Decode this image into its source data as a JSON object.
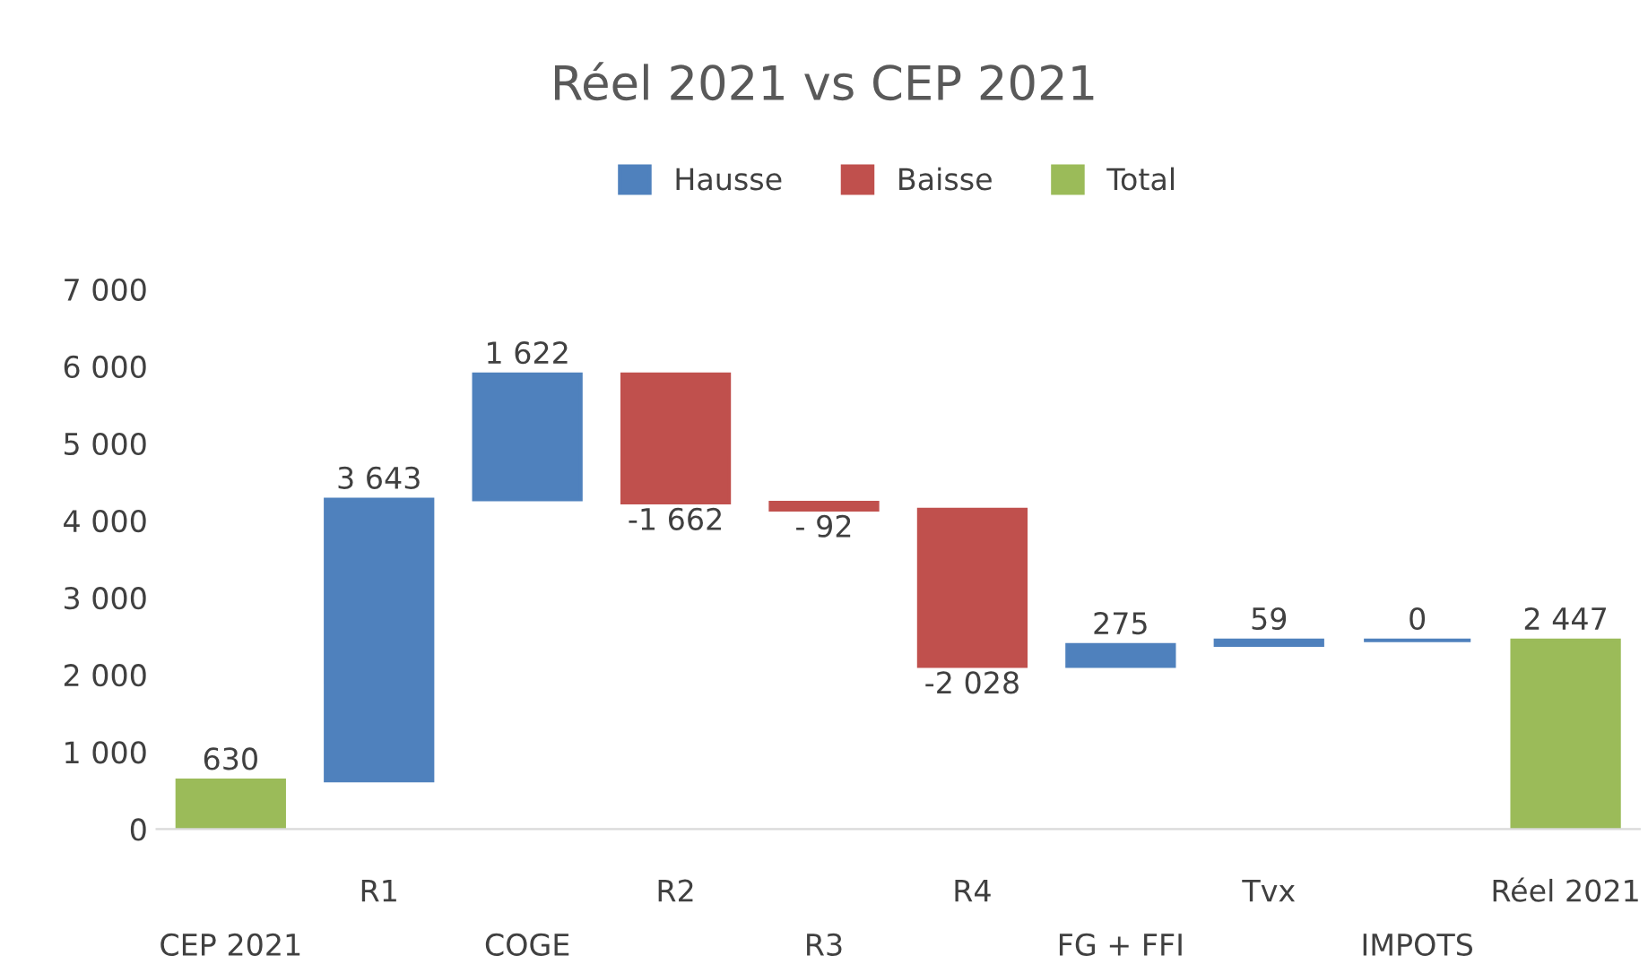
{
  "chart_data": {
    "type": "bar",
    "title": "Réel 2021 vs CEP 2021",
    "categories": [
      "CEP 2021",
      "R1",
      "COGE",
      "R2",
      "R3",
      "R4",
      "FG + FFI",
      "Tvx",
      "IMPOTS",
      "Réel 2021"
    ],
    "series": [
      {
        "name": "Hausse",
        "color": "#4f81bd",
        "base": [
          null,
          630,
          4273,
          null,
          null,
          null,
          2113,
          2388,
          2447,
          null
        ],
        "values": [
          null,
          3643,
          1622,
          null,
          null,
          null,
          275,
          59,
          0,
          null
        ],
        "value_labels": [
          null,
          "3 643",
          "1 622",
          null,
          null,
          null,
          "275",
          "59",
          "0",
          null
        ]
      },
      {
        "name": "Baisse",
        "color": "#c0504d",
        "base": [
          null,
          null,
          null,
          5895,
          4233,
          4141,
          null,
          null,
          null,
          null
        ],
        "values": [
          null,
          null,
          null,
          -1662,
          -92,
          -2028,
          null,
          null,
          null,
          null
        ],
        "value_labels": [
          null,
          null,
          null,
          "-1 662",
          "- 92",
          "-2 028",
          null,
          null,
          null,
          null
        ]
      },
      {
        "name": "Total",
        "color": "#9bbb59",
        "base": [
          0,
          null,
          null,
          null,
          null,
          null,
          null,
          null,
          null,
          0
        ],
        "values": [
          630,
          null,
          null,
          null,
          null,
          null,
          null,
          null,
          null,
          2447
        ],
        "value_labels": [
          "630",
          null,
          null,
          null,
          null,
          null,
          null,
          null,
          null,
          "2 447"
        ]
      }
    ],
    "ylim": [
      0,
      7000
    ],
    "yticks": [
      {
        "value": 0,
        "label": "0"
      },
      {
        "value": 1000,
        "label": "1 000"
      },
      {
        "value": 2000,
        "label": "2 000"
      },
      {
        "value": 3000,
        "label": "3 000"
      },
      {
        "value": 4000,
        "label": "4 000"
      },
      {
        "value": 5000,
        "label": "5 000"
      },
      {
        "value": 6000,
        "label": "6 000"
      },
      {
        "value": 7000,
        "label": "7 000"
      }
    ],
    "legend": "top",
    "grid": false
  }
}
